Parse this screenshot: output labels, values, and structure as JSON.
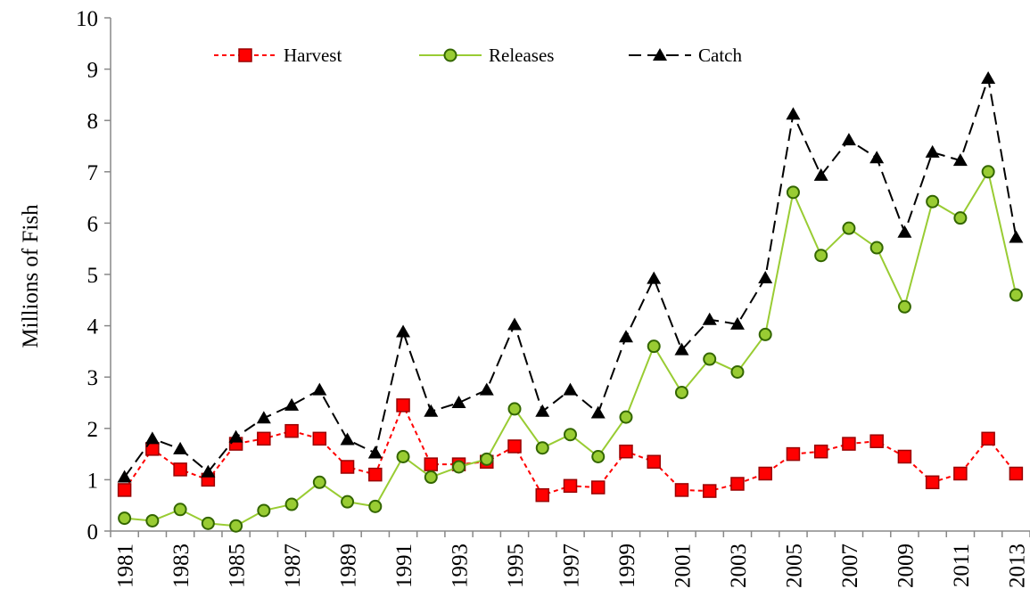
{
  "chart_data": {
    "type": "line",
    "y_label": "Millions of Fish",
    "categories": [
      "1981",
      null,
      "1983",
      null,
      "1985",
      null,
      "1987",
      null,
      "1989",
      null,
      "1991",
      null,
      "1993",
      null,
      "1995",
      null,
      "1997",
      null,
      "1999",
      null,
      "2001",
      null,
      "2003",
      null,
      "2005",
      null,
      "2007",
      null,
      "2009",
      null,
      "2011",
      null,
      "2013"
    ],
    "ylim": [
      0,
      10
    ],
    "yticks": [
      0,
      1,
      2,
      3,
      4,
      5,
      6,
      7,
      8,
      9,
      10
    ],
    "legend": "top",
    "series": [
      {
        "name": "Harvest",
        "color": "#ff0000",
        "marker": "square",
        "dash": "short",
        "values": [
          0.8,
          1.6,
          1.2,
          1.0,
          1.7,
          1.8,
          1.95,
          1.8,
          1.25,
          1.1,
          2.45,
          1.3,
          1.3,
          1.35,
          1.65,
          0.7,
          0.88,
          0.85,
          1.55,
          1.35,
          0.8,
          0.78,
          0.92,
          1.12,
          1.5,
          1.55,
          1.7,
          1.75,
          1.45,
          0.95,
          1.12,
          1.8,
          1.12
        ]
      },
      {
        "name": "Releases",
        "color": "#99cc33",
        "marker": "circle",
        "dash": "none",
        "values": [
          0.25,
          0.2,
          0.42,
          0.15,
          0.1,
          0.4,
          0.52,
          0.95,
          0.57,
          0.48,
          1.45,
          1.05,
          1.25,
          1.4,
          2.38,
          1.62,
          1.88,
          1.45,
          2.22,
          3.6,
          2.7,
          3.35,
          3.1,
          3.83,
          6.6,
          5.37,
          5.9,
          5.52,
          4.37,
          6.42,
          6.1,
          7.0,
          4.6
        ]
      },
      {
        "name": "Catch",
        "color": "#000000",
        "marker": "triangle",
        "dash": "long",
        "values": [
          1.05,
          1.8,
          1.6,
          1.15,
          1.83,
          2.2,
          2.45,
          2.75,
          1.78,
          1.52,
          3.88,
          2.33,
          2.5,
          2.75,
          4.02,
          2.33,
          2.75,
          2.3,
          3.78,
          4.92,
          3.53,
          4.12,
          4.03,
          4.93,
          8.12,
          6.93,
          7.62,
          7.27,
          5.82,
          7.38,
          7.22,
          8.82,
          5.72
        ]
      }
    ]
  }
}
